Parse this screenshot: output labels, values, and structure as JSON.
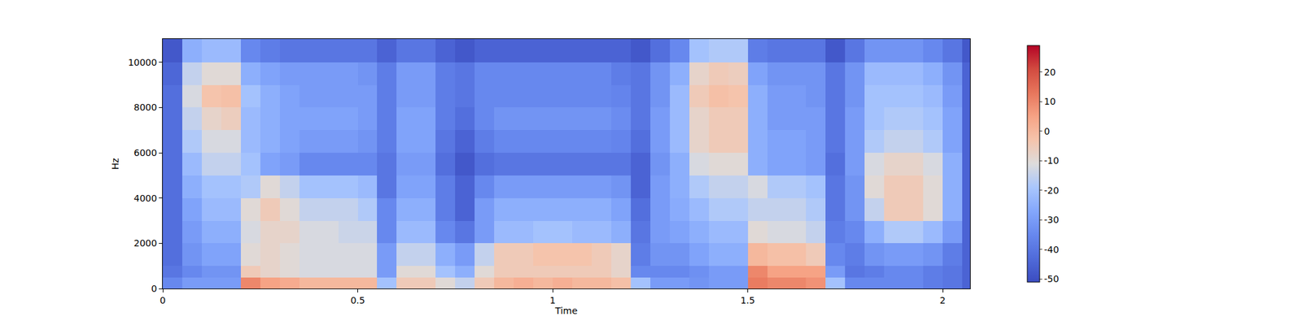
{
  "chart_data": {
    "type": "heatmap",
    "x_label": "Time",
    "y_label": "Hz",
    "xlim": [
      0,
      2.07
    ],
    "xticks": [
      0,
      0.5,
      1,
      1.5,
      2
    ],
    "ylim": [
      0,
      11025
    ],
    "yticks": [
      0,
      2000,
      4000,
      6000,
      8000,
      10000
    ],
    "grid": false,
    "time_edges": [
      0,
      0.05,
      0.1,
      0.15,
      0.2,
      0.25,
      0.3,
      0.35,
      0.4,
      0.45,
      0.5,
      0.55,
      0.6,
      0.65,
      0.7,
      0.75,
      0.8,
      0.85,
      0.9,
      0.95,
      1.0,
      1.05,
      1.1,
      1.15,
      1.2,
      1.25,
      1.3,
      1.35,
      1.4,
      1.45,
      1.5,
      1.55,
      1.6,
      1.65,
      1.7,
      1.75,
      1.8,
      1.85,
      1.9,
      1.95,
      2.0,
      2.05,
      2.07
    ],
    "freq_edges": [
      0,
      500,
      1000,
      2000,
      3000,
      4000,
      5000,
      6000,
      7000,
      8000,
      9000,
      10000,
      11025
    ],
    "cells": [
      [
        -35,
        -30,
        -30,
        -30,
        10,
        5,
        3,
        0,
        0,
        0,
        0,
        -20,
        -5,
        -5,
        -10,
        -15,
        -5,
        0,
        2,
        0,
        2,
        0,
        0,
        -2,
        -20,
        -30,
        -30,
        -32,
        -30,
        -30,
        12,
        10,
        10,
        8,
        -20,
        -35,
        -35,
        -35,
        -35,
        -38,
        -40,
        -45
      ],
      [
        -40,
        -35,
        -32,
        -32,
        -5,
        -8,
        -10,
        -12,
        -12,
        -12,
        -12,
        -30,
        -10,
        -10,
        -20,
        -25,
        -10,
        -5,
        -5,
        -5,
        -5,
        -5,
        -5,
        -8,
        -35,
        -35,
        -35,
        -33,
        -30,
        -30,
        10,
        5,
        5,
        5,
        -30,
        -40,
        -38,
        -35,
        -35,
        -38,
        -40,
        -45
      ],
      [
        -42,
        -32,
        -28,
        -28,
        -10,
        -8,
        -10,
        -12,
        -12,
        -12,
        -12,
        -30,
        -15,
        -15,
        -25,
        -30,
        -15,
        -5,
        -5,
        -3,
        -3,
        -3,
        -5,
        -8,
        -38,
        -32,
        -32,
        -28,
        -25,
        -25,
        0,
        -2,
        -2,
        -5,
        -35,
        -38,
        -32,
        -30,
        -30,
        -32,
        -38,
        -45
      ],
      [
        -42,
        -30,
        -25,
        -25,
        -12,
        -8,
        -8,
        -12,
        -12,
        -14,
        -14,
        -35,
        -22,
        -22,
        -35,
        -40,
        -30,
        -22,
        -22,
        -20,
        -20,
        -22,
        -22,
        -25,
        -40,
        -30,
        -28,
        -25,
        -22,
        -22,
        -10,
        -12,
        -12,
        -15,
        -38,
        -35,
        -25,
        -18,
        -18,
        -22,
        -30,
        -45
      ],
      [
        -42,
        -28,
        -22,
        -22,
        -10,
        -5,
        -10,
        -15,
        -15,
        -15,
        -18,
        -35,
        -25,
        -25,
        -38,
        -45,
        -30,
        -25,
        -25,
        -25,
        -25,
        -25,
        -25,
        -28,
        -42,
        -30,
        -26,
        -22,
        -18,
        -18,
        -15,
        -15,
        -15,
        -18,
        -40,
        -32,
        -15,
        -5,
        -5,
        -10,
        -25,
        -45
      ],
      [
        -42,
        -25,
        -20,
        -20,
        -18,
        -10,
        -15,
        -20,
        -20,
        -20,
        -22,
        -40,
        -28,
        -28,
        -38,
        -45,
        -35,
        -30,
        -30,
        -30,
        -30,
        -30,
        -30,
        -32,
        -45,
        -30,
        -25,
        -18,
        -15,
        -15,
        -12,
        -18,
        -18,
        -20,
        -40,
        -32,
        -10,
        -5,
        -5,
        -10,
        -25,
        -45
      ],
      [
        -42,
        -22,
        -15,
        -15,
        -20,
        -28,
        -30,
        -35,
        -35,
        -35,
        -35,
        -40,
        -30,
        -30,
        -42,
        -48,
        -42,
        -40,
        -40,
        -40,
        -40,
        -40,
        -40,
        -40,
        -45,
        -32,
        -25,
        -12,
        -10,
        -10,
        -25,
        -28,
        -28,
        -30,
        -42,
        -30,
        -12,
        -8,
        -8,
        -12,
        -25,
        -45
      ],
      [
        -42,
        -18,
        -12,
        -12,
        -22,
        -25,
        -28,
        -30,
        -30,
        -30,
        -32,
        -38,
        -28,
        -28,
        -40,
        -45,
        -38,
        -35,
        -35,
        -35,
        -35,
        -35,
        -35,
        -36,
        -42,
        -30,
        -22,
        -8,
        -5,
        -5,
        -25,
        -28,
        -28,
        -30,
        -40,
        -30,
        -18,
        -15,
        -15,
        -18,
        -28,
        -45
      ],
      [
        -42,
        -15,
        -8,
        -6,
        -22,
        -25,
        -28,
        -28,
        -28,
        -28,
        -30,
        -38,
        -28,
        -28,
        -38,
        -42,
        -35,
        -32,
        -32,
        -32,
        -32,
        -32,
        -32,
        -34,
        -40,
        -30,
        -22,
        -8,
        -5,
        -5,
        -25,
        -30,
        -30,
        -30,
        -40,
        -30,
        -20,
        -18,
        -18,
        -20,
        -28,
        -45
      ],
      [
        -42,
        -12,
        -3,
        -2,
        -20,
        -25,
        -28,
        -30,
        -30,
        -30,
        -30,
        -38,
        -30,
        -30,
        -38,
        -40,
        -35,
        -35,
        -35,
        -35,
        -35,
        -35,
        -35,
        -36,
        -40,
        -32,
        -22,
        -5,
        -2,
        -3,
        -25,
        -30,
        -30,
        -32,
        -40,
        -32,
        -20,
        -20,
        -20,
        -22,
        -30,
        -45
      ],
      [
        -44,
        -15,
        -10,
        -10,
        -25,
        -28,
        -30,
        -30,
        -30,
        -30,
        -32,
        -38,
        -30,
        -30,
        -38,
        -40,
        -35,
        -35,
        -35,
        -35,
        -35,
        -35,
        -35,
        -38,
        -40,
        -32,
        -25,
        -8,
        -5,
        -6,
        -28,
        -32,
        -32,
        -32,
        -40,
        -32,
        -22,
        -22,
        -22,
        -25,
        -32,
        -45
      ],
      [
        -48,
        -25,
        -22,
        -22,
        -35,
        -38,
        -40,
        -40,
        -40,
        -40,
        -40,
        -45,
        -40,
        -40,
        -45,
        -48,
        -45,
        -45,
        -45,
        -45,
        -45,
        -45,
        -45,
        -45,
        -48,
        -42,
        -35,
        -20,
        -18,
        -18,
        -38,
        -40,
        -40,
        -40,
        -48,
        -40,
        -32,
        -32,
        -32,
        -35,
        -40,
        -48
      ]
    ],
    "zlim": [
      -51,
      29
    ],
    "zticks": [
      -50,
      -40,
      -30,
      -20,
      -10,
      0,
      10,
      20
    ]
  }
}
